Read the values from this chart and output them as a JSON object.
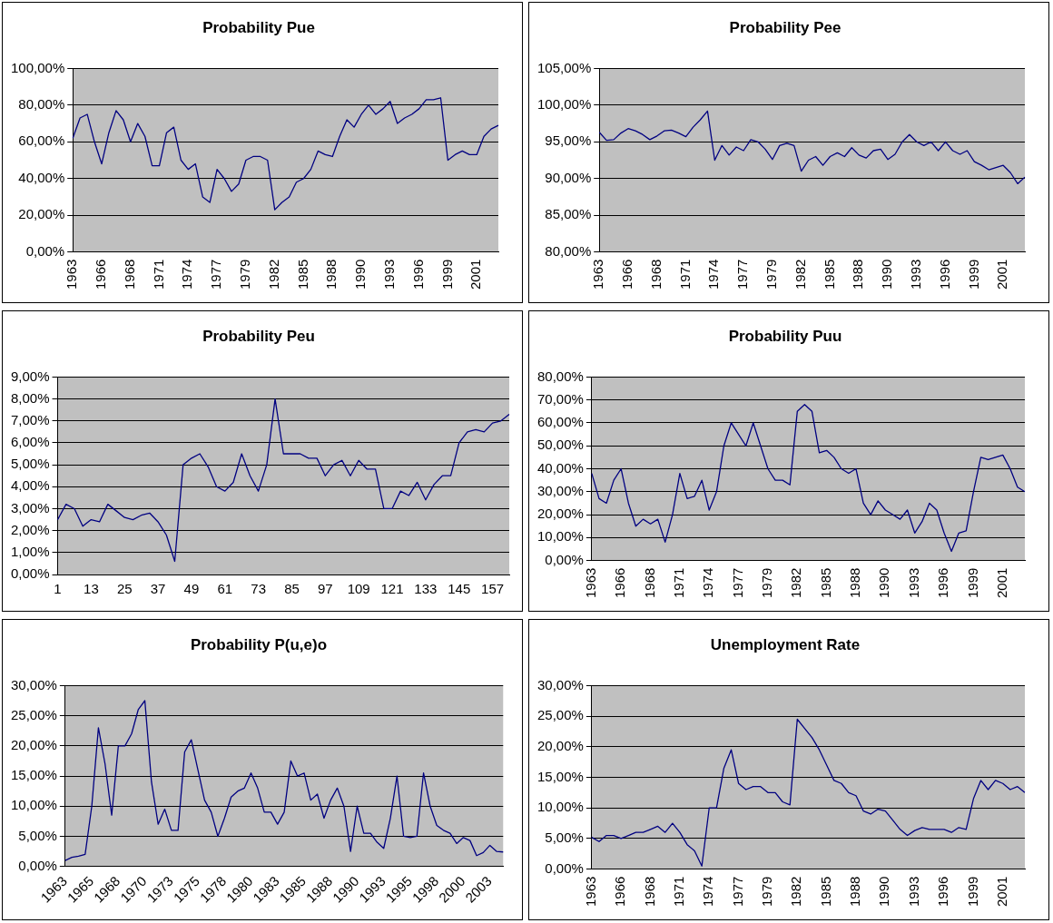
{
  "chart_data": [
    {
      "type": "line",
      "title": "Probability Pue",
      "color": "#000080",
      "marker": "none",
      "grid": "y",
      "categories": [
        "1963",
        null,
        null,
        null,
        "1966",
        null,
        null,
        null,
        "1968",
        null,
        null,
        null,
        "1971",
        null,
        null,
        null,
        "1974",
        null,
        null,
        null,
        "1977",
        null,
        null,
        null,
        "1979",
        null,
        null,
        null,
        "1982",
        null,
        null,
        null,
        "1985",
        null,
        null,
        null,
        "1988",
        null,
        null,
        null,
        "1990",
        null,
        null,
        null,
        "1993",
        null,
        null,
        null,
        "1996",
        null,
        null,
        null,
        "1999",
        null,
        null,
        null,
        "2001",
        null,
        null,
        null
      ],
      "values": [
        62,
        73,
        75,
        60,
        48,
        65,
        77,
        72,
        60,
        70,
        63,
        47,
        47,
        65,
        68,
        50,
        45,
        48,
        30,
        27,
        45,
        40,
        33,
        37,
        50,
        52,
        52,
        50,
        23,
        27,
        30,
        38,
        40,
        45,
        55,
        53,
        52,
        63,
        72,
        68,
        75,
        80,
        75,
        78,
        82,
        70,
        73,
        75,
        78,
        83,
        83,
        84,
        50,
        53,
        55,
        53,
        53,
        63,
        67,
        69
      ],
      "ylim": [
        0,
        100
      ],
      "yticks": [
        {
          "value": 0,
          "label": "0,00%"
        },
        {
          "value": 20,
          "label": "20,00%"
        },
        {
          "value": 40,
          "label": "40,00%"
        },
        {
          "value": 60,
          "label": "60,00%"
        },
        {
          "value": 80,
          "label": "80,00%"
        },
        {
          "value": 100,
          "label": "100,00%"
        }
      ]
    },
    {
      "type": "line",
      "title": "Probability Pee",
      "color": "#000080",
      "marker": "none",
      "grid": "y",
      "categories": [
        "1963",
        null,
        null,
        null,
        "1966",
        null,
        null,
        null,
        "1968",
        null,
        null,
        null,
        "1971",
        null,
        null,
        null,
        "1974",
        null,
        null,
        null,
        "1977",
        null,
        null,
        null,
        "1979",
        null,
        null,
        null,
        "1982",
        null,
        null,
        null,
        "1985",
        null,
        null,
        null,
        "1988",
        null,
        null,
        null,
        "1990",
        null,
        null,
        null,
        "1993",
        null,
        null,
        null,
        "1996",
        null,
        null,
        null,
        "1999",
        null,
        null,
        null,
        "2001",
        null,
        null,
        null
      ],
      "values": [
        96.3,
        95.2,
        95.3,
        96.2,
        96.8,
        96.5,
        96.0,
        95.3,
        95.8,
        96.5,
        96.6,
        96.2,
        95.7,
        97.0,
        98.0,
        99.2,
        92.5,
        94.5,
        93.2,
        94.3,
        93.8,
        95.3,
        95.0,
        94.0,
        92.6,
        94.5,
        94.8,
        94.5,
        91.0,
        92.5,
        93.0,
        91.8,
        93.0,
        93.5,
        93.0,
        94.2,
        93.2,
        92.8,
        93.8,
        94.0,
        92.6,
        93.3,
        95.0,
        96.0,
        95.0,
        94.5,
        95.0,
        93.8,
        95.0,
        93.8,
        93.3,
        93.8,
        92.3,
        91.8,
        91.2,
        91.5,
        91.8,
        90.8,
        89.3,
        90.2
      ],
      "ylim": [
        80,
        105
      ],
      "yticks": [
        {
          "value": 80,
          "label": "80,00%"
        },
        {
          "value": 85,
          "label": "85,00%"
        },
        {
          "value": 90,
          "label": "90,00%"
        },
        {
          "value": 95,
          "label": "95,00%"
        },
        {
          "value": 100,
          "label": "100,00%"
        },
        {
          "value": 105,
          "label": "105,00%"
        }
      ]
    },
    {
      "type": "line",
      "title": "Probability Peu",
      "color": "#000080",
      "marker": "none",
      "grid": "y",
      "categories": [
        "1",
        null,
        null,
        null,
        "13",
        null,
        null,
        null,
        "25",
        null,
        null,
        null,
        "37",
        null,
        null,
        null,
        "49",
        null,
        null,
        null,
        "61",
        null,
        null,
        null,
        "73",
        null,
        null,
        null,
        "85",
        null,
        null,
        null,
        "97",
        null,
        null,
        null,
        "109",
        null,
        null,
        null,
        "121",
        null,
        null,
        null,
        "133",
        null,
        null,
        null,
        "145",
        null,
        null,
        null,
        "157",
        null,
        null
      ],
      "values": [
        2.5,
        3.2,
        3.0,
        2.2,
        2.5,
        2.4,
        3.2,
        2.9,
        2.6,
        2.5,
        2.7,
        2.8,
        2.4,
        1.8,
        0.6,
        5.0,
        5.3,
        5.5,
        4.9,
        4.0,
        3.8,
        4.2,
        5.5,
        4.5,
        3.8,
        5.0,
        8.0,
        5.5,
        5.5,
        5.5,
        5.3,
        5.3,
        4.5,
        5.0,
        5.2,
        4.5,
        5.2,
        4.8,
        4.8,
        3.0,
        3.0,
        3.8,
        3.6,
        4.2,
        3.4,
        4.1,
        4.5,
        4.5,
        6.0,
        6.5,
        6.6,
        6.5,
        6.9,
        7.0,
        7.3
      ],
      "ylim": [
        0,
        9
      ],
      "yticks": [
        {
          "value": 0,
          "label": "0,00%"
        },
        {
          "value": 1,
          "label": "1,00%"
        },
        {
          "value": 2,
          "label": "2,00%"
        },
        {
          "value": 3,
          "label": "3,00%"
        },
        {
          "value": 4,
          "label": "4,00%"
        },
        {
          "value": 5,
          "label": "5,00%"
        },
        {
          "value": 6,
          "label": "6,00%"
        },
        {
          "value": 7,
          "label": "7,00%"
        },
        {
          "value": 8,
          "label": "8,00%"
        },
        {
          "value": 9,
          "label": "9,00%"
        }
      ]
    },
    {
      "type": "line",
      "title": "Probability Puu",
      "color": "#000080",
      "marker": "none",
      "grid": "y",
      "categories": [
        "1963",
        null,
        null,
        null,
        "1966",
        null,
        null,
        null,
        "1968",
        null,
        null,
        null,
        "1971",
        null,
        null,
        null,
        "1974",
        null,
        null,
        null,
        "1977",
        null,
        null,
        null,
        "1979",
        null,
        null,
        null,
        "1982",
        null,
        null,
        null,
        "1985",
        null,
        null,
        null,
        "1988",
        null,
        null,
        null,
        "1990",
        null,
        null,
        null,
        "1993",
        null,
        null,
        null,
        "1996",
        null,
        null,
        null,
        "1999",
        null,
        null,
        null,
        "2001",
        null,
        null,
        null
      ],
      "values": [
        38,
        27,
        25,
        35,
        40,
        25,
        15,
        18,
        16,
        18,
        8,
        20,
        38,
        27,
        28,
        35,
        22,
        30,
        50,
        60,
        55,
        50,
        60,
        50,
        40,
        35,
        35,
        33,
        65,
        68,
        65,
        47,
        48,
        45,
        40,
        38,
        40,
        25,
        20,
        26,
        22,
        20,
        18,
        22,
        12,
        17,
        25,
        22,
        12,
        4,
        12,
        13,
        30,
        45,
        44,
        45,
        46,
        40,
        32,
        30
      ],
      "ylim": [
        0,
        80
      ],
      "yticks": [
        {
          "value": 0,
          "label": "0,00%"
        },
        {
          "value": 10,
          "label": "10,00%"
        },
        {
          "value": 20,
          "label": "20,00%"
        },
        {
          "value": 30,
          "label": "30,00%"
        },
        {
          "value": 40,
          "label": "40,00%"
        },
        {
          "value": 50,
          "label": "50,00%"
        },
        {
          "value": 60,
          "label": "60,00%"
        },
        {
          "value": 70,
          "label": "70,00%"
        },
        {
          "value": 80,
          "label": "80,00%"
        }
      ]
    },
    {
      "type": "line",
      "title": "Probability P(u,e)o",
      "color": "#000080",
      "marker": "none",
      "grid": "y",
      "categories": [
        "1963",
        null,
        null,
        null,
        "1965",
        null,
        null,
        null,
        "1968",
        null,
        null,
        null,
        "1970",
        null,
        null,
        null,
        "1973",
        null,
        null,
        null,
        "1975",
        null,
        null,
        null,
        "1978",
        null,
        null,
        null,
        "1980",
        null,
        null,
        null,
        "1983",
        null,
        null,
        null,
        "1985",
        null,
        null,
        null,
        "1988",
        null,
        null,
        null,
        "1990",
        null,
        null,
        null,
        "1993",
        null,
        null,
        null,
        "1995",
        null,
        null,
        null,
        "1998",
        null,
        null,
        null,
        "2000",
        null,
        null,
        null,
        "2003",
        null,
        null
      ],
      "values": [
        1.0,
        1.5,
        1.7,
        2.0,
        10,
        23,
        17,
        8.5,
        20,
        20,
        22,
        26,
        27.5,
        14,
        7,
        9.5,
        6,
        6,
        19,
        21,
        16,
        11,
        9,
        5,
        8,
        11.5,
        12.5,
        13,
        15.5,
        13,
        9,
        9,
        7,
        9,
        17.5,
        15,
        15.5,
        11,
        12,
        8,
        11,
        13,
        10,
        2.5,
        10,
        5.5,
        5.5,
        4,
        3,
        8,
        15,
        5,
        4.8,
        5,
        15.5,
        10,
        6.8,
        6,
        5.5,
        3.8,
        4.8,
        4.3,
        1.8,
        2.3,
        3.5,
        2.5,
        2.4
      ],
      "ylim": [
        0,
        30
      ],
      "yticks": [
        {
          "value": 0,
          "label": "0,00%"
        },
        {
          "value": 5,
          "label": "5,00%"
        },
        {
          "value": 10,
          "label": "10,00%"
        },
        {
          "value": 15,
          "label": "15,00%"
        },
        {
          "value": 20,
          "label": "20,00%"
        },
        {
          "value": 25,
          "label": "25,00%"
        },
        {
          "value": 30,
          "label": "30,00%"
        }
      ]
    },
    {
      "type": "line",
      "title": "Unemployment Rate",
      "color": "#000080",
      "marker": "none",
      "grid": "y",
      "categories": [
        "1963",
        null,
        null,
        null,
        "1966",
        null,
        null,
        null,
        "1968",
        null,
        null,
        null,
        "1971",
        null,
        null,
        null,
        "1974",
        null,
        null,
        null,
        "1977",
        null,
        null,
        null,
        "1979",
        null,
        null,
        null,
        "1982",
        null,
        null,
        null,
        "1985",
        null,
        null,
        null,
        "1988",
        null,
        null,
        null,
        "1990",
        null,
        null,
        null,
        "1993",
        null,
        null,
        null,
        "1996",
        null,
        null,
        null,
        "1999",
        null,
        null,
        null,
        "2001",
        null,
        null,
        null
      ],
      "values": [
        5.2,
        4.5,
        5.5,
        5.5,
        5.0,
        5.5,
        6.0,
        6.0,
        6.5,
        7.0,
        6.0,
        7.5,
        6.0,
        4.0,
        3.0,
        0.5,
        10,
        10,
        16.5,
        19.5,
        14,
        13,
        13.5,
        13.5,
        12.5,
        12.5,
        11,
        10.5,
        24.5,
        23,
        21.5,
        19.5,
        17,
        14.5,
        14,
        12.5,
        12,
        9.5,
        9,
        9.8,
        9.5,
        8,
        6.5,
        5.5,
        6.3,
        6.8,
        6.5,
        6.5,
        6.5,
        6,
        6.8,
        6.5,
        11.5,
        14.5,
        13,
        14.5,
        14,
        13,
        13.5,
        12.5
      ],
      "ylim": [
        0,
        30
      ],
      "yticks": [
        {
          "value": 0,
          "label": "0,00%"
        },
        {
          "value": 5,
          "label": "5,00%"
        },
        {
          "value": 10,
          "label": "10,00%"
        },
        {
          "value": 15,
          "label": "15,00%"
        },
        {
          "value": 20,
          "label": "20,00%"
        },
        {
          "value": 25,
          "label": "25,00%"
        },
        {
          "value": 30,
          "label": "30,00%"
        }
      ]
    }
  ]
}
